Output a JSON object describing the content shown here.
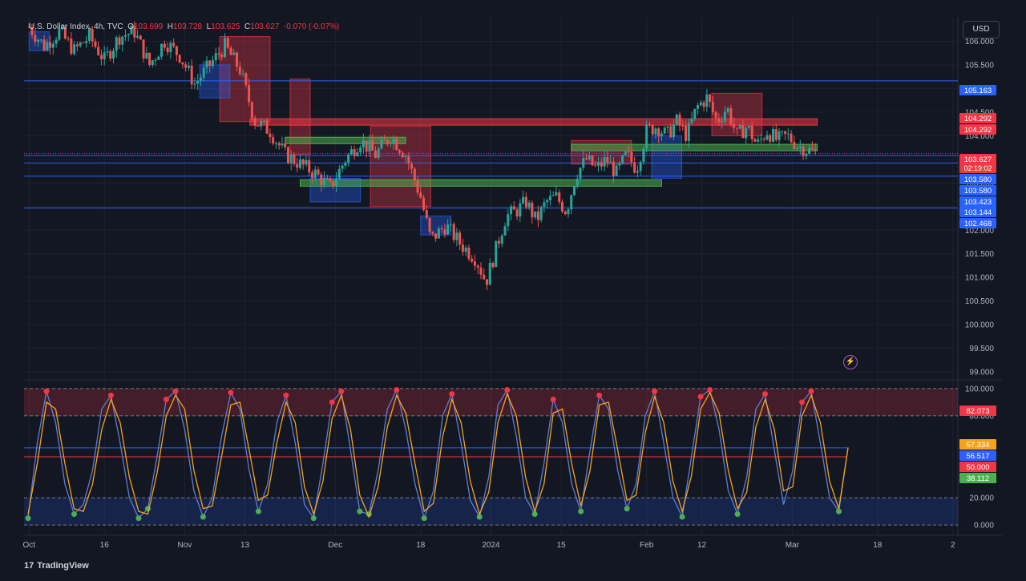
{
  "header": {
    "symbol": "U.S. Dollar Index, 4h, TVC",
    "o_label": "O",
    "o_value": "103.699",
    "h_label": "H",
    "h_value": "103.728",
    "l_label": "L",
    "l_value": "103.625",
    "c_label": "C",
    "c_value": "103.627",
    "change": "-0.070 (-0.07%)"
  },
  "currency_button": "USD",
  "branding": {
    "name": "TradingView",
    "logo": "17"
  },
  "colors": {
    "background": "#131722",
    "up": "#26a69a",
    "down": "#ef5350",
    "blue_level": "#2962ff",
    "red_zone": "#f23645",
    "green_zone": "#4caf50",
    "k_line": "#5b7fd6",
    "d_line": "#f7a21b"
  },
  "chart_data": [
    {
      "type": "candlestick",
      "title": "",
      "ylim": [
        98.9,
        106.5
      ],
      "yticks": [
        "106.000",
        "105.500",
        "105.000",
        "104.500",
        "104.000",
        "103.500",
        "103.000",
        "102.500",
        "102.000",
        "101.500",
        "101.000",
        "100.500",
        "100.000",
        "99.500",
        "99.000"
      ],
      "ytick_values": [
        106,
        105.5,
        105,
        104.5,
        104,
        103.5,
        103,
        102.5,
        102,
        101.5,
        101,
        100.5,
        100,
        99.5,
        99
      ],
      "x_labels": [
        {
          "label": "Oct",
          "day": 0
        },
        {
          "label": "16",
          "day": 15
        },
        {
          "label": "Nov",
          "day": 31
        },
        {
          "label": "13",
          "day": 43
        },
        {
          "label": "Dec",
          "day": 61
        },
        {
          "label": "18",
          "day": 78
        },
        {
          "label": "2024",
          "day": 92
        },
        {
          "label": "15",
          "day": 106
        },
        {
          "label": "Feb",
          "day": 123
        },
        {
          "label": "12",
          "day": 134
        },
        {
          "label": "Mar",
          "day": 152
        },
        {
          "label": "18",
          "day": 169
        },
        {
          "label": "2",
          "day": 184
        }
      ],
      "x_range_days": [
        -1,
        185
      ],
      "price_path": [
        [
          0,
          106.3
        ],
        [
          3,
          105.9
        ],
        [
          6,
          106.2
        ],
        [
          9,
          105.8
        ],
        [
          12,
          106.1
        ],
        [
          15,
          105.6
        ],
        [
          18,
          106.1
        ],
        [
          21,
          106.2
        ],
        [
          24,
          105.5
        ],
        [
          27,
          106.0
        ],
        [
          30,
          105.7
        ],
        [
          33,
          105.1
        ],
        [
          36,
          105.5
        ],
        [
          39,
          105.9
        ],
        [
          42,
          105.4
        ],
        [
          45,
          104.3
        ],
        [
          48,
          104.1
        ],
        [
          51,
          103.6
        ],
        [
          54,
          103.4
        ],
        [
          57,
          103.2
        ],
        [
          60,
          102.9
        ],
        [
          63,
          103.5
        ],
        [
          66,
          103.9
        ],
        [
          69,
          103.6
        ],
        [
          72,
          104.0
        ],
        [
          75,
          103.6
        ],
        [
          78,
          102.7
        ],
        [
          80,
          101.8
        ],
        [
          83,
          102.1
        ],
        [
          86,
          101.7
        ],
        [
          89,
          101.4
        ],
        [
          91,
          100.9
        ],
        [
          93,
          101.6
        ],
        [
          95,
          102.3
        ],
        [
          97,
          102.4
        ],
        [
          99,
          102.6
        ],
        [
          101,
          102.2
        ],
        [
          103,
          102.6
        ],
        [
          105,
          102.7
        ],
        [
          107,
          102.4
        ],
        [
          109,
          103.2
        ],
        [
          111,
          103.5
        ],
        [
          113,
          103.3
        ],
        [
          115,
          103.5
        ],
        [
          117,
          103.2
        ],
        [
          119,
          103.6
        ],
        [
          121,
          103.3
        ],
        [
          123,
          104.1
        ],
        [
          125,
          104.2
        ],
        [
          127,
          104.0
        ],
        [
          129,
          104.3
        ],
        [
          131,
          104.0
        ],
        [
          133,
          104.6
        ],
        [
          135,
          104.8
        ],
        [
          137,
          104.3
        ],
        [
          139,
          104.6
        ],
        [
          141,
          104.0
        ],
        [
          143,
          104.2
        ],
        [
          145,
          103.8
        ],
        [
          147,
          104.1
        ],
        [
          149,
          103.9
        ],
        [
          151,
          104.0
        ],
        [
          153,
          103.8
        ],
        [
          155,
          103.7
        ],
        [
          157,
          103.627
        ]
      ],
      "levels": [
        {
          "value": 105.163,
          "label": "105.163",
          "color": "#2962ff"
        },
        {
          "value": 104.292,
          "label": "104.292",
          "color": "#f23645"
        },
        {
          "value": 104.292,
          "label": "104.292",
          "color": "#f23645"
        },
        {
          "value": 103.627,
          "label": "103.627",
          "color": "#f23645",
          "sub": "02:19:02"
        },
        {
          "value": 103.58,
          "label": "103.580",
          "color": "#2962ff"
        },
        {
          "value": 103.58,
          "label": "103.580",
          "color": "#2962ff"
        },
        {
          "value": 103.423,
          "label": "103.423",
          "color": "#2962ff"
        },
        {
          "value": 103.144,
          "label": "103.144",
          "color": "#2962ff"
        },
        {
          "value": 102.468,
          "label": "102.468",
          "color": "#2962ff"
        }
      ],
      "zones": [
        {
          "x0": 38,
          "x1": 48,
          "y0": 104.3,
          "y1": 106.1,
          "color": "#f23645"
        },
        {
          "x0": 52,
          "x1": 56,
          "y0": 103.6,
          "y1": 105.2,
          "color": "#f23645"
        },
        {
          "x0": 68,
          "x1": 80,
          "y0": 102.5,
          "y1": 104.2,
          "color": "#f23645"
        },
        {
          "x0": 108,
          "x1": 120,
          "y0": 103.4,
          "y1": 103.9,
          "color": "#f23645"
        },
        {
          "x0": 136,
          "x1": 146,
          "y0": 104.0,
          "y1": 104.9,
          "color": "#f23645"
        },
        {
          "x0": 0,
          "x1": 4,
          "y0": 105.8,
          "y1": 106.2,
          "color": "#2962ff"
        },
        {
          "x0": 34,
          "x1": 40,
          "y0": 104.8,
          "y1": 105.5,
          "color": "#2962ff"
        },
        {
          "x0": 56,
          "x1": 66,
          "y0": 102.6,
          "y1": 103.1,
          "color": "#2962ff"
        },
        {
          "x0": 78,
          "x1": 84,
          "y0": 101.9,
          "y1": 102.3,
          "color": "#2962ff"
        },
        {
          "x0": 124,
          "x1": 130,
          "y0": 103.1,
          "y1": 104.0,
          "color": "#2962ff"
        }
      ],
      "bands": [
        {
          "x0": 44,
          "x1": 157,
          "value": 104.292,
          "color": "#f23645"
        },
        {
          "x0": 51,
          "x1": 75,
          "value": 103.9,
          "color": "#4caf50"
        },
        {
          "x0": 54,
          "x1": 126,
          "value": 103.0,
          "color": "#4caf50"
        },
        {
          "x0": 108,
          "x1": 157,
          "value": 103.75,
          "color": "#4caf50"
        }
      ]
    },
    {
      "type": "line",
      "title": "",
      "ylim": [
        -4,
        104
      ],
      "yticks": [
        "100.000",
        "80.000",
        "20.000",
        "0.000"
      ],
      "ytick_values": [
        100,
        80,
        20,
        0
      ],
      "levels": [
        {
          "value": 82.073,
          "label": "82.073",
          "color": "#f23645"
        },
        {
          "value": 57.334,
          "label": "57.334",
          "color": "#f7a21b"
        },
        {
          "value": 56.517,
          "label": "56.517",
          "color": "#2962ff"
        },
        {
          "value": 50.0,
          "label": "50.000",
          "color": "#f23645"
        },
        {
          "value": 38.112,
          "label": "38.112",
          "color": "#4caf50"
        }
      ],
      "series": [
        {
          "values": [
            5,
            60,
            98,
            75,
            30,
            8,
            15,
            40,
            85,
            95,
            60,
            20,
            5,
            12,
            50,
            92,
            98,
            70,
            25,
            6,
            20,
            65,
            97,
            85,
            40,
            10,
            30,
            75,
            95,
            60,
            15,
            5,
            45,
            90,
            98,
            55,
            10,
            8,
            40,
            85,
            99,
            70,
            30,
            5,
            25,
            80,
            96,
            60,
            18,
            6,
            35,
            88,
            99,
            65,
            20,
            8,
            45,
            92,
            75,
            30,
            10,
            55,
            95,
            85,
            40,
            12,
            30,
            80,
            98,
            60,
            20,
            6,
            50,
            94,
            99,
            70,
            25,
            8,
            35,
            85,
            96,
            55,
            15,
            40,
            90,
            98,
            60,
            20,
            10,
            57
          ]
        },
        {
          "values": [
            8,
            45,
            90,
            85,
            45,
            12,
            10,
            30,
            70,
            92,
            75,
            35,
            10,
            8,
            38,
            80,
            95,
            85,
            40,
            12,
            14,
            50,
            88,
            90,
            55,
            18,
            22,
            60,
            90,
            75,
            28,
            8,
            32,
            78,
            95,
            70,
            22,
            6,
            28,
            72,
            95,
            82,
            45,
            10,
            16,
            65,
            92,
            75,
            32,
            8,
            24,
            75,
            96,
            80,
            35,
            10,
            30,
            82,
            85,
            45,
            14,
            40,
            88,
            90,
            55,
            18,
            22,
            68,
            94,
            75,
            32,
            10,
            36,
            85,
            97,
            82,
            40,
            12,
            24,
            72,
            92,
            70,
            25,
            28,
            80,
            95,
            75,
            32,
            12,
            56.517
          ]
        }
      ]
    }
  ]
}
